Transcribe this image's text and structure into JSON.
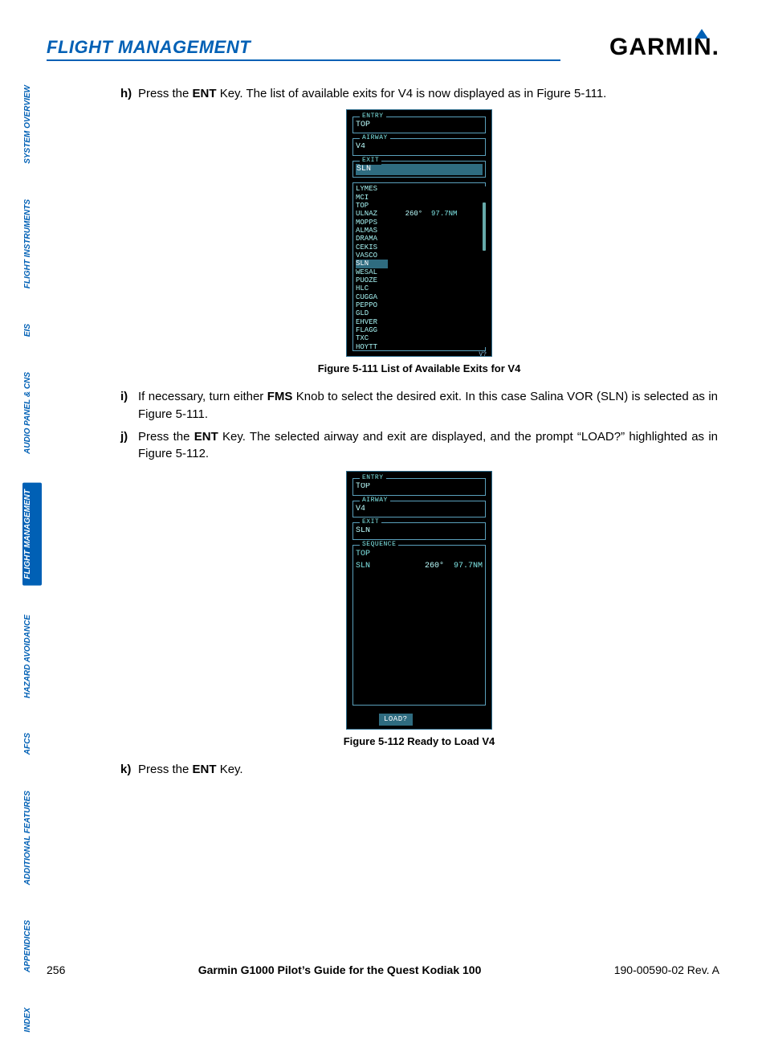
{
  "header": {
    "section_title": "FLIGHT MANAGEMENT",
    "logo_text": "GARMIN",
    "logo_dot": "."
  },
  "sidebar": {
    "active_index": 4,
    "tabs": [
      "SYSTEM OVERVIEW",
      "FLIGHT INSTRUMENTS",
      "EIS",
      "AUDIO PANEL & CNS",
      "FLIGHT MANAGEMENT",
      "HAZARD AVOIDANCE",
      "AFCS",
      "ADDITIONAL FEATURES",
      "APPENDICES",
      "INDEX"
    ]
  },
  "steps": {
    "h": {
      "letter": "h)",
      "pre": "Press the ",
      "key": "ENT",
      "post": " Key.  The list of available exits for V4 is now displayed as in Figure 5-111."
    },
    "i": {
      "letter": "i)",
      "pre": "If necessary, turn either ",
      "key": "FMS",
      "post": " Knob to select the desired exit.  In this case Salina VOR (SLN) is selected as in Figure 5-111."
    },
    "j": {
      "letter": "j)",
      "pre": "Press the ",
      "key": "ENT",
      "post": " Key.  The selected airway and exit are displayed, and the prompt “LOAD?” highlighted as in Figure 5-112."
    },
    "k": {
      "letter": "k)",
      "pre": "Press the ",
      "key": "ENT",
      "post": " Key."
    }
  },
  "figure1": {
    "caption": "Figure 5-111  List of Available Exits for V4",
    "entry_label": "ENTRY",
    "entry_value": "TOP",
    "airway_label": "AIRWAY",
    "airway_value": "V4",
    "exit_label": "EXIT",
    "exit_value": "SLN",
    "heading": "260°",
    "distance": "97.7NM",
    "scroll_label": "V?",
    "selected": "SLN",
    "waypoints": [
      "LYMES",
      "MCI",
      "TOP",
      "ULNAZ",
      "MOPPS",
      "ALMAS",
      "DRAMA",
      "CEKIS",
      "VASCO",
      "SLN",
      "WESAL",
      "PUOZE",
      "HLC",
      "CUGGA",
      "PEPPO",
      "GLD",
      "EHVER",
      "FLAGG",
      "TXC",
      "HOYTT"
    ]
  },
  "figure2": {
    "caption": "Figure 5-112  Ready to Load V4",
    "entry_label": "ENTRY",
    "entry_value": "TOP",
    "airway_label": "AIRWAY",
    "airway_value": "V4",
    "exit_label": "EXIT",
    "exit_value": "SLN",
    "sequence_label": "SEQUENCE",
    "seq_top": "TOP",
    "seq_sln": "SLN",
    "heading": "260°",
    "distance": "97.7NM",
    "load_label": "LOAD?"
  },
  "footer": {
    "page": "256",
    "title": "Garmin G1000 Pilot’s Guide for the Quest Kodiak 100",
    "doc": "190-00590-02  Rev. A"
  },
  "colors": {
    "brand_blue": "#0060b5",
    "avionics_cyan": "#7fe6e6",
    "avionics_border": "#5aa0bc",
    "avionics_highlight": "#2f6c80"
  }
}
